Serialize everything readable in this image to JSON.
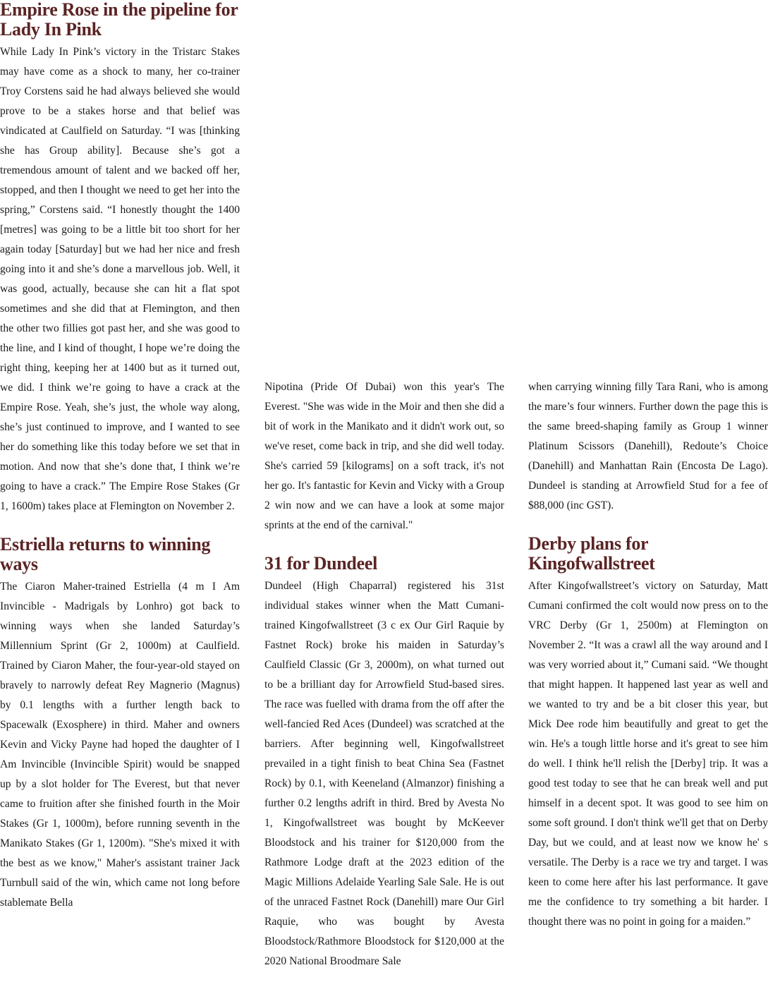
{
  "columns": [
    [
      {
        "heading": "Empire Rose in the pipeline for Lady In Pink"
      },
      {
        "paragraph": "While Lady In Pink’s victory in the Tristarc Stakes may have come as a shock to many, her co-trainer Troy Corstens said he had always believed she would prove to be a stakes horse and that belief was vindicated at Caulfield on Saturday. “I was [thinking she has Group ability]. Because she’s got a tremendous amount of talent and we backed off her, stopped, and then I thought we need to get her into the spring,” Corstens said. “I honestly thought the 1400 [metres] was going to be a little bit too short for her again today [Saturday] but we had her nice and fresh going into it and she’s done a marvellous job. Well, it was good, actually, because she can hit a flat spot sometimes and she did that at Flemington, and then the other two fillies got past her, and she was good to the line, and I kind of thought, I hope we’re doing the right thing, keeping her at 1400 but as it turned out, we did. I think we’re going to have a crack at the Empire Rose. Yeah, she’s just, the whole way along, she’s just continued to improve, and I wanted to see her do something like this today before we set that in motion. And now that she’s done that, I think we’re going to have a crack.” The Empire Rose Stakes (Gr 1, 1600m) takes place at Flemington on November 2."
      },
      {
        "heading": "Estriella returns to winning ways"
      },
      {
        "paragraph": "The Ciaron Maher-trained Estriella (4 m I Am Invincible - Madrigals by Lonhro) got back to winning ways when she landed Saturday’s Millennium Sprint (Gr 2, 1000m) at Caulfield. Trained by Ciaron Maher, the four-year-old stayed on bravely to narrowly defeat Rey Magnerio (Magnus) by 0.1 lengths with a further length back to Spacewalk (Exosphere) in third. Maher and owners Kevin and Vicky Payne had hoped the daughter of I Am Invincible (Invincible Spirit) would be snapped up by a slot holder for The Everest, but that never came to fruition after she finished fourth in the Moir Stakes (Gr 1, 1000m), before running seventh in the Manikato Stakes (Gr 1, 1200m). \"She's mixed it with the best as we know,\" Maher's assistant trainer Jack Turnbull said of the win, which came not long before stablemate Bella"
      }
    ],
    [
      {
        "paragraph": "Nipotina (Pride Of Dubai) won this year's The Everest. \"She was wide in the Moir and then she did a bit of work in the Manikato and it didn't work out, so we've reset, come back in trip, and she did well today. She's carried 59 [kilograms] on a soft track, it's not her go. It's fantastic for Kevin and Vicky with a Group 2 win now and we can have a look at some major sprints at the end of the carnival.\""
      },
      {
        "heading": "31 for Dundeel"
      },
      {
        "paragraph": "Dundeel (High Chaparral) registered his 31st individual stakes winner when the Matt Cumani-trained Kingofwallstreet (3 c ex Our Girl Raquie by Fastnet Rock) broke his maiden in Saturday’s Caulfield Classic (Gr 3, 2000m), on what turned out to be a brilliant day for Arrowfield Stud-based sires. The race was fuelled with drama from the off after the well-fancied Red Aces (Dundeel) was scratched at the barriers. After beginning well, Kingofwallstreet prevailed in a tight finish to beat China Sea (Fastnet Rock) by 0.1, with Keeneland (Almanzor) finishing a further 0.2 lengths adrift in third. Bred by Avesta No 1, Kingofwallstreet was bought by McKeever Bloodstock and his trainer for $120,000 from the Rathmore Lodge draft at the 2023 edition of the Magic Millions Adelaide Yearling Sale Sale. He is out of the unraced Fastnet Rock (Danehill) mare Our Girl Raquie, who was bought by Avesta Bloodstock/Rathmore Bloodstock for $120,000 at the 2020 National Broodmare Sale"
      }
    ],
    [
      {
        "paragraph": "when carrying winning filly Tara Rani, who is among the mare’s four winners. Further down the page this is the same breed-shaping family as Group 1 winner Platinum Scissors (Danehill), Redoute’s Choice (Danehill) and Manhattan Rain (Encosta De Lago). Dundeel is standing at Arrowfield Stud for a fee of $88,000 (inc GST)."
      },
      {
        "heading": "Derby plans for Kingofwallstreet"
      },
      {
        "paragraph": "After Kingofwallstreet’s victory on Saturday, Matt Cumani confirmed the colt would now press on to the VRC Derby (Gr 1, 2500m) at Flemington on November 2. “It was a crawl all the way around and I was very worried about it,” Cumani said. “We thought that might happen. It happened last year as well and we wanted to try and be a bit closer this year, but Mick Dee rode him beautifully and great to get the win. He's a tough little horse and it's great to see him do well. I think he'll relish the [Derby] trip. It was a good test today to see that he can break well and put himself in a decent spot. It was good to see him on some soft ground. I don't think we'll get that on Derby Day, but we could, and at least now we know he' s versatile. The Derby is a race we try and target. I was keen to come here after his last performance. It gave me the confidence to try something a bit harder. I thought there was no point in going for a maiden.”"
      }
    ]
  ]
}
